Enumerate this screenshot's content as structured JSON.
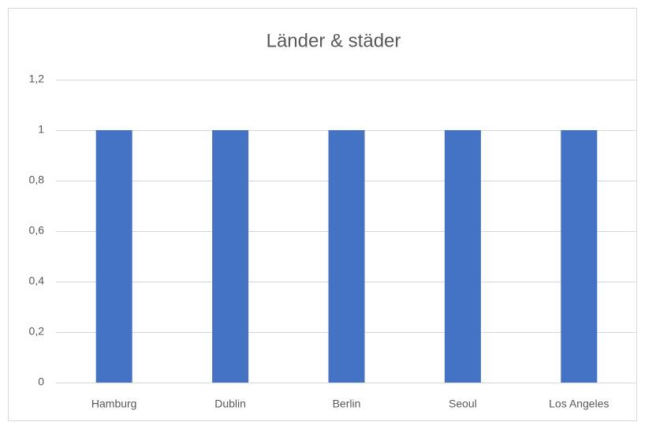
{
  "chart_data": {
    "type": "bar",
    "title": "Länder & städer",
    "categories": [
      "Hamburg",
      "Dublin",
      "Berlin",
      "Seoul",
      "Los Angeles"
    ],
    "values": [
      1,
      1,
      1,
      1,
      1
    ],
    "color": "#4472c4",
    "ylim": [
      0,
      1.2
    ],
    "yticks": [
      0,
      {
        "value": 0.2,
        "label": "0,2"
      },
      {
        "value": 0.4,
        "label": "0,4"
      },
      {
        "value": 0.6,
        "label": "0,6"
      },
      {
        "value": 0.8,
        "label": "0,8"
      },
      1,
      {
        "value": 1.2,
        "label": "1,2"
      }
    ],
    "grid": true
  }
}
